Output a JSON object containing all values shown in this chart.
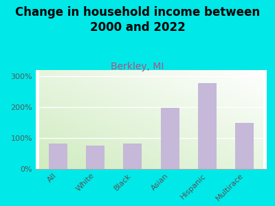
{
  "title": "Change in household income between\n2000 and 2022",
  "subtitle": "Berkley, MI",
  "categories": [
    "All",
    "White",
    "Black",
    "Asian",
    "Hispanic",
    "Multirace"
  ],
  "values": [
    82,
    75,
    83,
    197,
    278,
    148
  ],
  "bar_color": "#c5b8d8",
  "title_fontsize": 12,
  "subtitle_fontsize": 10,
  "subtitle_color": "#b05080",
  "background_color": "#00e8e8",
  "ylim": [
    0,
    320
  ],
  "yticks": [
    0,
    100,
    200,
    300
  ],
  "ytick_labels": [
    "0%",
    "100%",
    "200%",
    "300%"
  ],
  "plot_bg_color1": "#e8f5e0",
  "plot_bg_color2": "#f8fff5"
}
